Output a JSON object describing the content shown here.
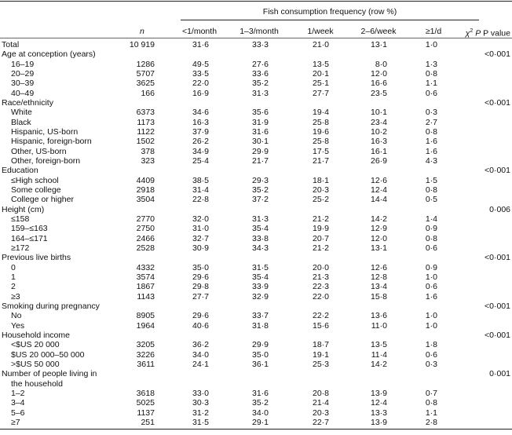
{
  "header": {
    "spanner": "Fish consumption frequency (row %)",
    "n_label": "n",
    "columns": [
      "<1/month",
      "1–3/month",
      "1/week",
      "2–6/week",
      "≥1/d"
    ],
    "p_chi": "χ",
    "p_sup": "2",
    "p_label": "P value"
  },
  "total": {
    "label": "Total",
    "n": "10 919",
    "values": [
      "31·6",
      "33·3",
      "21·0",
      "13·1",
      "1·0"
    ]
  },
  "sections": [
    {
      "label": "Age at conception (years)",
      "p": "<0·001",
      "rows": [
        {
          "label": "16–19",
          "n": "1286",
          "values": [
            "49·5",
            "27·6",
            "13·5",
            "8·0",
            "1·3"
          ]
        },
        {
          "label": "20–29",
          "n": "5707",
          "values": [
            "33·5",
            "33·6",
            "20·1",
            "12·0",
            "0·8"
          ]
        },
        {
          "label": "30–39",
          "n": "3625",
          "values": [
            "22·0",
            "35·2",
            "25·1",
            "16·6",
            "1·1"
          ]
        },
        {
          "label": "40–49",
          "n": "166",
          "values": [
            "16·9",
            "31·3",
            "27·7",
            "23·5",
            "0·6"
          ]
        }
      ]
    },
    {
      "label": "Race/ethnicity",
      "p": "<0·001",
      "rows": [
        {
          "label": "White",
          "n": "6373",
          "values": [
            "34·6",
            "35·6",
            "19·4",
            "10·1",
            "0·3"
          ]
        },
        {
          "label": "Black",
          "n": "1173",
          "values": [
            "16·3",
            "31·9",
            "25·8",
            "23·4",
            "2·7"
          ]
        },
        {
          "label": "Hispanic, US-born",
          "n": "1122",
          "values": [
            "37·9",
            "31·6",
            "19·6",
            "10·2",
            "0·8"
          ]
        },
        {
          "label": "Hispanic, foreign-born",
          "n": "1502",
          "values": [
            "26·2",
            "30·1",
            "25·8",
            "16·3",
            "1·6"
          ]
        },
        {
          "label": "Other, US-born",
          "n": "378",
          "values": [
            "34·9",
            "29·9",
            "17·5",
            "16·1",
            "1·6"
          ]
        },
        {
          "label": "Other, foreign-born",
          "n": "323",
          "values": [
            "25·4",
            "21·7",
            "21·7",
            "26·9",
            "4·3"
          ]
        }
      ]
    },
    {
      "label": "Education",
      "p": "<0·001",
      "rows": [
        {
          "label": "≤High school",
          "n": "4409",
          "values": [
            "38·5",
            "29·3",
            "18·1",
            "12·6",
            "1·5"
          ]
        },
        {
          "label": "Some college",
          "n": "2918",
          "values": [
            "31·4",
            "35·2",
            "20·3",
            "12·4",
            "0·8"
          ]
        },
        {
          "label": "College or higher",
          "n": "3504",
          "values": [
            "22·8",
            "37·2",
            "25·2",
            "14·4",
            "0·5"
          ]
        }
      ]
    },
    {
      "label": "Height (cm)",
      "p": "0·006",
      "rows": [
        {
          "label": "≤158",
          "n": "2770",
          "values": [
            "32·0",
            "31·3",
            "21·2",
            "14·2",
            "1·4"
          ]
        },
        {
          "label": "159–≤163",
          "n": "2750",
          "values": [
            "31·0",
            "35·4",
            "19·9",
            "12·9",
            "0·9"
          ]
        },
        {
          "label": "164–≤171",
          "n": "2466",
          "values": [
            "32·7",
            "33·8",
            "20·7",
            "12·0",
            "0·8"
          ]
        },
        {
          "label": "≥172",
          "n": "2528",
          "values": [
            "30·9",
            "34·3",
            "21·2",
            "13·1",
            "0·6"
          ]
        }
      ]
    },
    {
      "label": "Previous live births",
      "p": "<0·001",
      "rows": [
        {
          "label": "0",
          "n": "4332",
          "values": [
            "35·0",
            "31·5",
            "20·0",
            "12·6",
            "0·9"
          ]
        },
        {
          "label": "1",
          "n": "3574",
          "values": [
            "29·6",
            "35·4",
            "21·3",
            "12·8",
            "1·0"
          ]
        },
        {
          "label": "2",
          "n": "1867",
          "values": [
            "29·8",
            "33·9",
            "22·3",
            "13·4",
            "0·6"
          ]
        },
        {
          "label": "≥3",
          "n": "1143",
          "values": [
            "27·7",
            "32·9",
            "22·0",
            "15·8",
            "1·6"
          ]
        }
      ]
    },
    {
      "label": "Smoking during pregnancy",
      "p": "<0·001",
      "rows": [
        {
          "label": "No",
          "n": "8905",
          "values": [
            "29·6",
            "33·7",
            "22·2",
            "13·6",
            "1·0"
          ]
        },
        {
          "label": "Yes",
          "n": "1964",
          "values": [
            "40·6",
            "31·8",
            "15·6",
            "11·0",
            "1·0"
          ]
        }
      ]
    },
    {
      "label": "Household income",
      "p": "<0·001",
      "rows": [
        {
          "label": "<$US 20 000",
          "n": "3205",
          "values": [
            "36·2",
            "29·9",
            "18·7",
            "13·5",
            "1·8"
          ]
        },
        {
          "label": "$US 20 000–50 000",
          "n": "3226",
          "values": [
            "34·0",
            "35·0",
            "19·1",
            "11·4",
            "0·6"
          ]
        },
        {
          "label": ">$US 50 000",
          "n": "3611",
          "values": [
            "24·1",
            "36·1",
            "25·3",
            "14·2",
            "0·3"
          ]
        }
      ]
    },
    {
      "label": "Number of people living in",
      "label2": "the household",
      "p": "0·001",
      "rows": [
        {
          "label": "1–2",
          "n": "3618",
          "values": [
            "33·0",
            "31·6",
            "20·8",
            "13·9",
            "0·7"
          ]
        },
        {
          "label": "3–4",
          "n": "5025",
          "values": [
            "30·3",
            "35·2",
            "21·4",
            "12·4",
            "0·8"
          ]
        },
        {
          "label": "5–6",
          "n": "1137",
          "values": [
            "31·2",
            "34·0",
            "20·3",
            "13·3",
            "1·1"
          ]
        },
        {
          "label": "≥7",
          "n": "251",
          "values": [
            "31·5",
            "29·1",
            "22·7",
            "13·9",
            "2·8"
          ]
        }
      ]
    }
  ]
}
